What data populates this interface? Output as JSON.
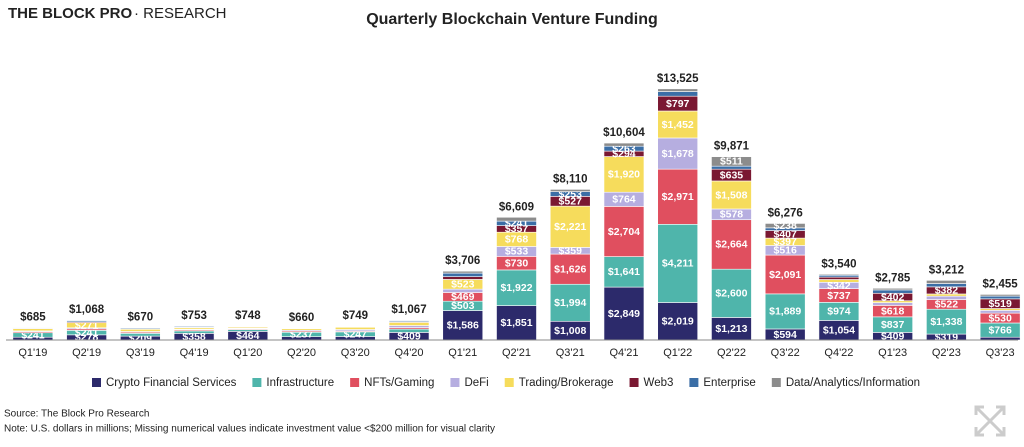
{
  "chart_data": {
    "type": "stacked_bar",
    "logo": [
      "THE BLOCK PRO",
      "· RESEARCH"
    ],
    "title": "Quarterly Blockchain Venture Funding",
    "source": "Source: The Block Pro Research",
    "note": "Note: U.S. dollars in millions; Missing numerical values indicate investment value <$200 million for visual clarity",
    "categories": [
      "Q1'19",
      "Q2'19",
      "Q3'19",
      "Q4'19",
      "Q1'20",
      "Q2'20",
      "Q3'20",
      "Q4'20",
      "Q1'21",
      "Q2'21",
      "Q3'21",
      "Q4'21",
      "Q1'22",
      "Q2'22",
      "Q3'22",
      "Q4'22",
      "Q1'23",
      "Q2'23",
      "Q3'23"
    ],
    "ylim": [
      0,
      14000
    ],
    "legend": "bottom",
    "series": [
      {
        "name": "Crypto Financial Services",
        "color": "#2c2a6b",
        "values": [
          150,
          278,
          209,
          358,
          464,
          180,
          190,
          409,
          1586,
          1851,
          1008,
          2849,
          2019,
          1213,
          594,
          1054,
          409,
          319,
          150
        ],
        "value_labels": [
          null,
          "$278",
          "$209",
          "$358",
          "$464",
          null,
          null,
          "$409",
          "$1,586",
          "$1,851",
          "$1,008",
          "$2,849",
          "$2,019",
          "$1,213",
          "$594",
          "$1,054",
          "$409",
          "$319",
          null
        ]
      },
      {
        "name": "Infrastructure",
        "color": "#4fb5ab",
        "values": [
          241,
          241,
          150,
          130,
          100,
          237,
          247,
          180,
          503,
          1922,
          1994,
          1641,
          4211,
          2600,
          1889,
          974,
          837,
          1338,
          766
        ],
        "value_labels": [
          "$241",
          "$241",
          null,
          null,
          null,
          "$237",
          "$247",
          null,
          "$503",
          "$1,922",
          "$1,994",
          "$1,641",
          "$4,211",
          "$2,600",
          "$1,889",
          "$974",
          "$837",
          "$1,338",
          "$766"
        ]
      },
      {
        "name": "NFTs/Gaming",
        "color": "#e04f5f",
        "values": [
          60,
          80,
          60,
          60,
          40,
          60,
          50,
          80,
          469,
          730,
          1626,
          2704,
          2971,
          2664,
          2091,
          737,
          618,
          522,
          530
        ],
        "value_labels": [
          null,
          null,
          null,
          null,
          null,
          null,
          null,
          null,
          "$469",
          "$730",
          "$1,626",
          "$2,704",
          "$2,971",
          "$2,664",
          "$2,091",
          "$737",
          "$618",
          "$522",
          "$530"
        ]
      },
      {
        "name": "DeFi",
        "color": "#b6aee0",
        "values": [
          40,
          60,
          40,
          40,
          30,
          50,
          80,
          110,
          180,
          533,
          359,
          764,
          1678,
          578,
          516,
          342,
          150,
          180,
          150
        ],
        "value_labels": [
          null,
          null,
          null,
          null,
          null,
          null,
          null,
          null,
          null,
          "$533",
          "$359",
          "$764",
          "$1,678",
          "$578",
          "$516",
          "$342",
          null,
          null,
          null
        ]
      },
      {
        "name": "Trading/Brokerage",
        "color": "#f6dc5c",
        "values": [
          120,
          271,
          120,
          80,
          60,
          80,
          120,
          170,
          523,
          768,
          2221,
          1920,
          1452,
          1508,
          397,
          150,
          100,
          120,
          100
        ],
        "value_labels": [
          null,
          "$271",
          null,
          null,
          null,
          null,
          null,
          null,
          "$523",
          "$768",
          "$2,221",
          "$1,920",
          "$1,452",
          "$1,508",
          "$397",
          null,
          null,
          null,
          null
        ]
      },
      {
        "name": "Web3",
        "color": "#7a1832",
        "values": [
          30,
          50,
          30,
          30,
          20,
          20,
          25,
          40,
          150,
          357,
          527,
          294,
          797,
          635,
          407,
          130,
          402,
          382,
          519
        ],
        "value_labels": [
          null,
          null,
          null,
          null,
          null,
          null,
          null,
          null,
          null,
          "$357",
          "$527",
          "$294",
          "$797",
          "$635",
          "$407",
          null,
          "$402",
          "$382",
          "$519"
        ]
      },
      {
        "name": "Enterprise",
        "color": "#3b6ea6",
        "values": [
          34,
          70,
          50,
          45,
          28,
          25,
          30,
          60,
          190,
          241,
          253,
          263,
          250,
          162,
          144,
          100,
          180,
          180,
          150
        ],
        "value_labels": [
          null,
          null,
          null,
          null,
          null,
          null,
          null,
          null,
          null,
          "$241",
          "$253",
          "$263",
          null,
          null,
          null,
          null,
          null,
          null,
          null
        ]
      },
      {
        "name": "Data/Analytics/Information",
        "color": "#8c8c8c",
        "values": [
          10,
          18,
          11,
          10,
          6,
          8,
          7,
          18,
          105,
          207,
          122,
          169,
          147,
          511,
          238,
          53,
          89,
          171,
          90
        ],
        "value_labels": [
          null,
          null,
          null,
          null,
          null,
          null,
          null,
          null,
          null,
          null,
          null,
          null,
          null,
          "$511",
          "$238",
          null,
          null,
          null,
          null
        ]
      }
    ],
    "totals": {
      "values": [
        685,
        1068,
        670,
        753,
        748,
        660,
        749,
        1067,
        3706,
        6609,
        8110,
        10604,
        13525,
        9871,
        6276,
        3540,
        2785,
        3212,
        2455
      ],
      "value_labels": [
        "$685",
        "$1,068",
        "$670",
        "$753",
        "$748",
        "$660",
        "$749",
        "$1,067",
        "$3,706",
        "$6,609",
        "$8,110",
        "$10,604",
        "$13,525",
        "$9,871",
        "$6,276",
        "$3,540",
        "$2,785",
        "$3,212",
        "$2,455"
      ]
    }
  }
}
